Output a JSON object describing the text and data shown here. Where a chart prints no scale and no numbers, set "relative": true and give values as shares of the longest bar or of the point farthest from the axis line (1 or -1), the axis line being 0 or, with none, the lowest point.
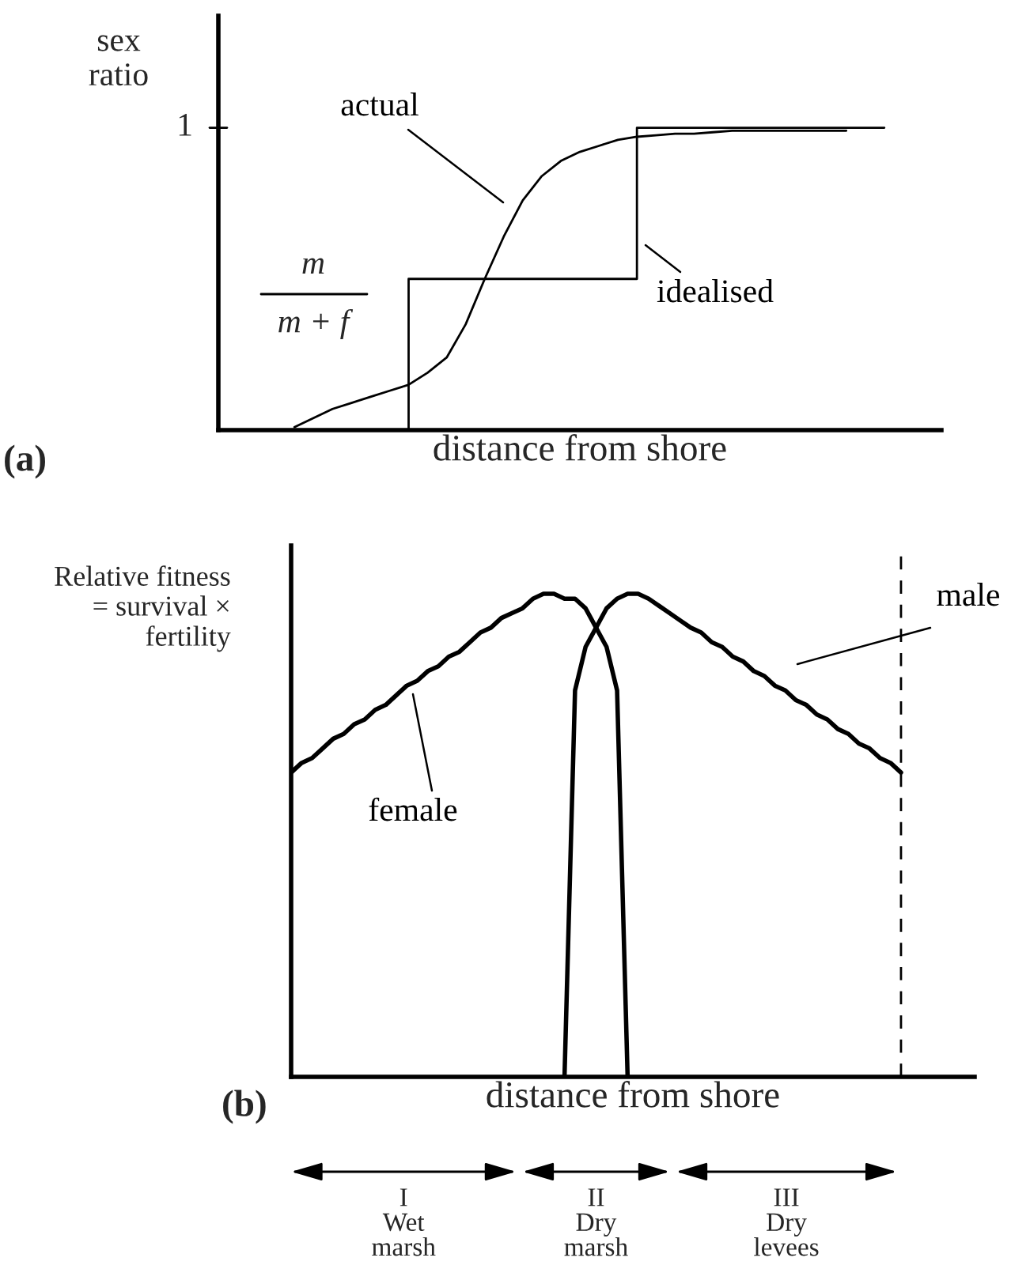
{
  "chart_data": [
    {
      "type": "line",
      "title": "(a)",
      "xlabel": "distance from shore",
      "ylabel": "sex\nratio",
      "relative": true,
      "categories": [
        null,
        null,
        null,
        null,
        null,
        null,
        null,
        null,
        null,
        null,
        null,
        null,
        null,
        null,
        null,
        null,
        null,
        null,
        null,
        null,
        null,
        null,
        null,
        null,
        null,
        null,
        null,
        null,
        null,
        null,
        null,
        null,
        null,
        null,
        null,
        null,
        null,
        null,
        null
      ],
      "series": [
        {
          "name": "actual",
          "color": "#000000",
          "values": [
            null,
            null,
            null,
            null,
            0.01,
            0.04,
            0.07,
            0.09,
            0.11,
            0.13,
            0.15,
            0.19,
            0.24,
            0.35,
            0.5,
            0.64,
            0.76,
            0.84,
            0.89,
            0.92,
            0.94,
            0.96,
            0.97,
            0.975,
            0.98,
            0.98,
            0.985,
            0.99,
            0.99,
            0.99,
            0.99,
            0.99,
            0.99,
            0.99,
            null,
            null,
            null,
            null,
            null
          ]
        },
        {
          "name": "idealised",
          "type": "step",
          "color": "#000000",
          "values": [
            null,
            null,
            null,
            null,
            null,
            null,
            null,
            null,
            null,
            null,
            0,
            0.5,
            0.5,
            0.5,
            0.5,
            0.5,
            0.5,
            0.5,
            0.5,
            0.5,
            0.5,
            0.5,
            0.5,
            1,
            1,
            1,
            1,
            1,
            1,
            1,
            1,
            1,
            1,
            1,
            1,
            1,
            null,
            null,
            null
          ]
        }
      ],
      "annotations": [
        "1",
        "m",
        "m + f"
      ]
    },
    {
      "type": "line",
      "title": "(b)",
      "xlabel": "distance from shore",
      "ylabel": "Relative fitness\n= survival ×\nfertility",
      "relative": true,
      "categories": [
        null,
        null,
        null,
        null,
        null,
        null,
        null,
        null,
        null,
        null,
        null,
        null,
        null,
        null,
        null,
        null,
        null,
        null,
        null,
        null,
        null,
        null,
        null,
        null,
        null,
        null,
        null,
        null,
        null,
        null,
        null,
        null,
        null,
        null,
        null,
        null,
        null,
        null,
        null,
        null,
        null,
        null,
        null,
        null,
        null,
        null,
        null,
        null,
        null,
        null,
        null,
        null,
        null,
        null,
        null,
        null,
        null,
        null,
        null,
        null,
        null,
        null,
        null,
        null,
        null,
        null
      ],
      "series": [
        {
          "name": "female",
          "color": "#000000",
          "values": [
            0.63,
            0.65,
            0.66,
            0.68,
            0.7,
            0.71,
            0.73,
            0.74,
            0.76,
            0.77,
            0.79,
            0.81,
            0.82,
            0.84,
            0.85,
            0.87,
            0.88,
            0.9,
            0.92,
            0.93,
            0.95,
            0.96,
            0.97,
            0.99,
            1.0,
            1.0,
            0.99,
            0.99,
            0.97,
            0.93,
            0.89,
            0.8,
            0,
            null,
            null,
            null,
            null,
            null,
            null,
            null,
            null,
            null,
            null,
            null,
            null,
            null,
            null,
            null,
            null,
            null,
            null,
            null,
            null,
            null,
            null,
            null,
            null,
            null,
            null,
            null,
            null,
            null,
            null,
            null,
            null,
            null
          ]
        },
        {
          "name": "male",
          "color": "#000000",
          "values": [
            null,
            null,
            null,
            null,
            null,
            null,
            null,
            null,
            null,
            null,
            null,
            null,
            null,
            null,
            null,
            null,
            null,
            null,
            null,
            null,
            null,
            null,
            null,
            null,
            null,
            null,
            0,
            0.8,
            0.89,
            0.93,
            0.97,
            0.99,
            1.0,
            1.0,
            0.99,
            0.975,
            0.96,
            0.945,
            0.93,
            0.92,
            0.9,
            0.89,
            0.87,
            0.86,
            0.84,
            0.83,
            0.81,
            0.8,
            0.78,
            0.77,
            0.75,
            0.74,
            0.72,
            0.71,
            0.69,
            0.68,
            0.66,
            0.65,
            0.63,
            null,
            null,
            null,
            null,
            null,
            null,
            null
          ]
        }
      ],
      "annotations": [
        "I\nWet\nmarsh",
        "II\nDry\nmarsh",
        "III\nDry\nlevees"
      ]
    }
  ]
}
